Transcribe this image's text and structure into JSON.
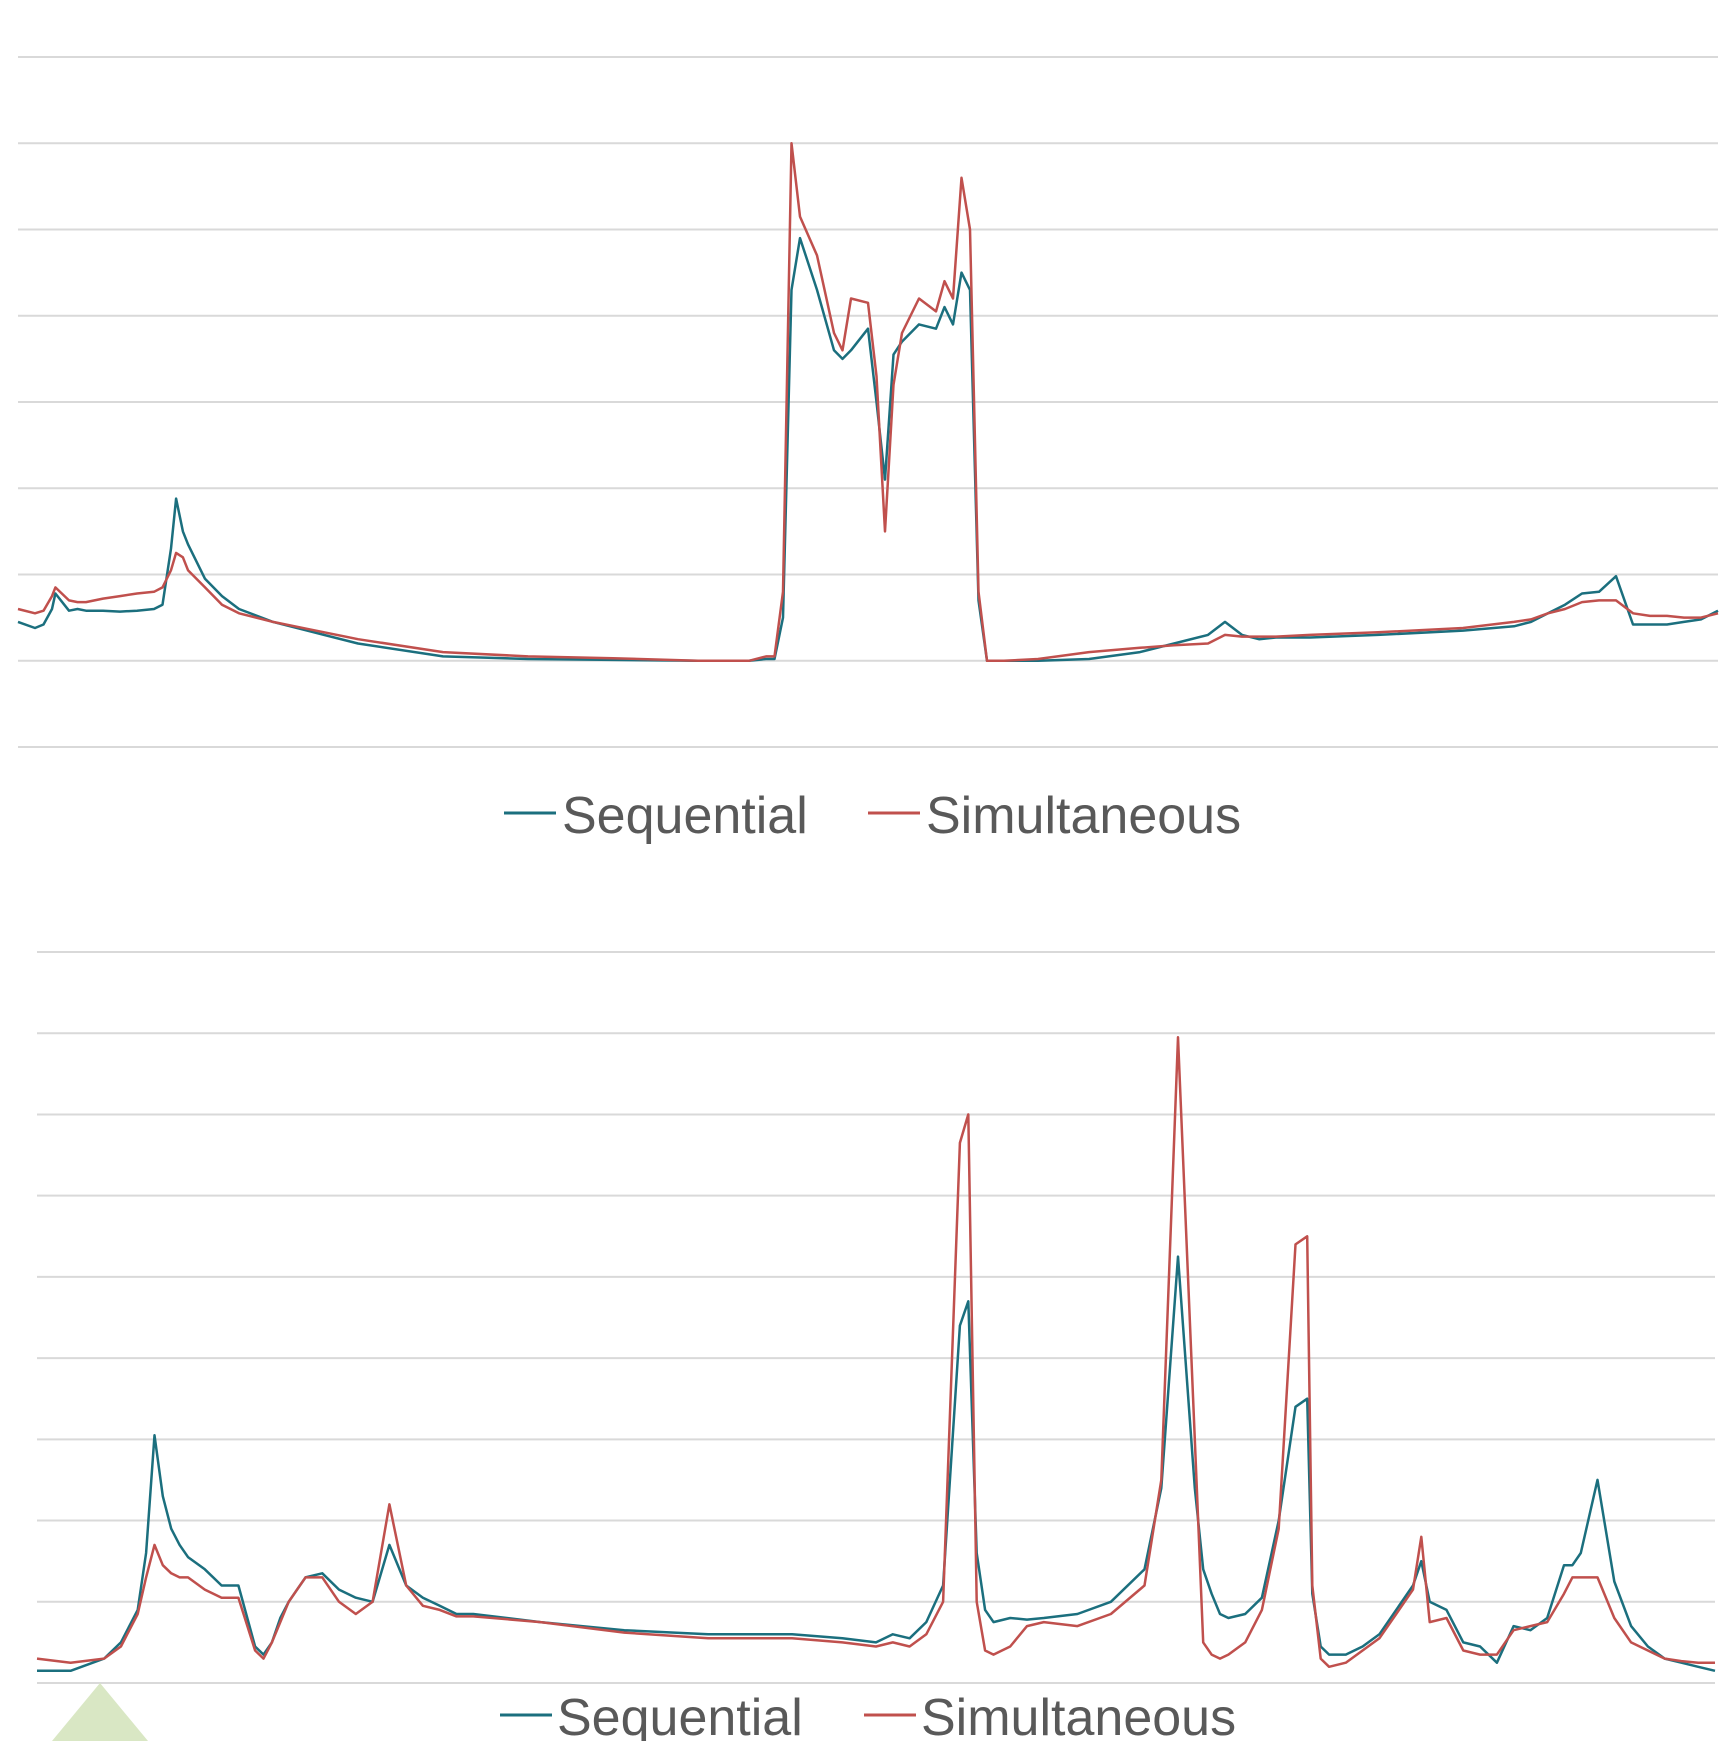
{
  "colors": {
    "sequential": "#1b6f7e",
    "simultaneous": "#c0504d",
    "grid": "#d9d9d9",
    "legend_text": "#595959",
    "decoration": "#d9e7c4"
  },
  "legend": {
    "sequential": "Sequential",
    "simultaneous": "Simultaneous"
  },
  "chart_data": [
    {
      "type": "line",
      "title": "",
      "xlabel": "",
      "ylabel": "",
      "grid": true,
      "gridlines": 9,
      "ylim": [
        -1,
        7
      ],
      "xlim": [
        0,
        100
      ],
      "legend_position": "bottom",
      "series": [
        {
          "name": "Sequential",
          "x": [
            0,
            1,
            1.5,
            2,
            2.2,
            3,
            3.5,
            4,
            5,
            6,
            7,
            8,
            8.5,
            9,
            9.3,
            9.7,
            10,
            11,
            12,
            13,
            15,
            17,
            20,
            25,
            30,
            35,
            40,
            43,
            44,
            44.5,
            45,
            45.5,
            46,
            47,
            48,
            48.5,
            49,
            50,
            50.5,
            51,
            51.5,
            52,
            53,
            54,
            54.5,
            55,
            55.5,
            56,
            56.5,
            57,
            58,
            60,
            63,
            66,
            68,
            70,
            71,
            72,
            73,
            74,
            76,
            80,
            85,
            88,
            89,
            90,
            91,
            92,
            93,
            94,
            95,
            96,
            97,
            98,
            99,
            100
          ],
          "y": [
            0.45,
            0.38,
            0.42,
            0.6,
            0.78,
            0.58,
            0.6,
            0.58,
            0.58,
            0.57,
            0.58,
            0.6,
            0.65,
            1.3,
            1.88,
            1.5,
            1.35,
            0.95,
            0.75,
            0.6,
            0.45,
            0.35,
            0.2,
            0.05,
            0.02,
            0.01,
            0.0,
            0.0,
            0.02,
            0.02,
            0.5,
            4.3,
            4.9,
            4.3,
            3.6,
            3.5,
            3.6,
            3.85,
            3.0,
            2.1,
            3.55,
            3.7,
            3.9,
            3.85,
            4.1,
            3.9,
            4.5,
            4.3,
            0.7,
            0.0,
            0.0,
            0.0,
            0.02,
            0.1,
            0.2,
            0.3,
            0.45,
            0.3,
            0.25,
            0.27,
            0.27,
            0.3,
            0.35,
            0.4,
            0.45,
            0.55,
            0.65,
            0.78,
            0.8,
            0.98,
            0.42,
            0.42,
            0.42,
            0.45,
            0.48,
            0.58
          ]
        },
        {
          "name": "Simultaneous",
          "x": [
            0,
            1,
            1.5,
            2,
            2.2,
            3,
            3.5,
            4,
            5,
            6,
            7,
            8,
            8.5,
            9,
            9.3,
            9.7,
            10,
            11,
            12,
            13,
            15,
            17,
            20,
            25,
            30,
            35,
            40,
            43,
            44,
            44.5,
            45,
            45.5,
            46,
            47,
            48,
            48.5,
            49,
            50,
            50.5,
            51,
            51.5,
            52,
            53,
            54,
            54.5,
            55,
            55.5,
            56,
            56.5,
            57,
            58,
            60,
            63,
            66,
            68,
            70,
            71,
            72,
            73,
            74,
            76,
            80,
            85,
            88,
            89,
            90,
            91,
            92,
            93,
            94,
            95,
            96,
            97,
            98,
            99,
            100
          ],
          "y": [
            0.6,
            0.55,
            0.58,
            0.75,
            0.85,
            0.7,
            0.68,
            0.68,
            0.72,
            0.75,
            0.78,
            0.8,
            0.85,
            1.05,
            1.25,
            1.2,
            1.05,
            0.85,
            0.65,
            0.55,
            0.45,
            0.37,
            0.25,
            0.1,
            0.05,
            0.03,
            0.0,
            0.0,
            0.05,
            0.05,
            0.8,
            6.0,
            5.15,
            4.7,
            3.8,
            3.6,
            4.2,
            4.15,
            3.3,
            1.5,
            3.2,
            3.8,
            4.2,
            4.05,
            4.4,
            4.2,
            5.6,
            5.0,
            0.8,
            0.0,
            0.0,
            0.02,
            0.1,
            0.15,
            0.18,
            0.2,
            0.3,
            0.28,
            0.28,
            0.28,
            0.3,
            0.33,
            0.38,
            0.45,
            0.48,
            0.55,
            0.6,
            0.68,
            0.7,
            0.7,
            0.55,
            0.52,
            0.52,
            0.5,
            0.5,
            0.55
          ]
        }
      ]
    },
    {
      "type": "line",
      "title": "",
      "xlabel": "",
      "ylabel": "",
      "grid": true,
      "gridlines": 10,
      "ylim": [
        0,
        9
      ],
      "xlim": [
        0,
        100
      ],
      "legend_position": "bottom",
      "series": [
        {
          "name": "Sequential",
          "x": [
            0,
            2,
            4,
            5,
            6,
            6.5,
            7,
            7.5,
            8,
            8.5,
            9,
            10,
            11,
            12,
            13,
            13.5,
            14,
            14.5,
            15,
            15.5,
            16,
            17,
            18,
            19,
            20,
            21,
            22,
            23,
            24,
            25,
            26,
            30,
            35,
            40,
            45,
            48,
            50,
            51,
            52,
            53,
            54,
            55,
            55.5,
            56,
            56.5,
            57,
            58,
            59,
            60,
            62,
            64,
            66,
            67,
            68,
            69,
            69.5,
            70,
            70.5,
            71,
            72,
            73,
            74,
            75,
            75.7,
            76,
            76.5,
            77,
            78,
            79,
            80,
            81,
            82,
            82.5,
            83,
            84,
            85,
            86,
            87,
            88,
            89,
            90,
            91,
            91.5,
            92,
            93,
            94,
            95,
            96,
            97,
            98,
            99,
            100
          ],
          "y": [
            0.15,
            0.15,
            0.3,
            0.5,
            0.9,
            1.6,
            3.05,
            2.3,
            1.9,
            1.7,
            1.55,
            1.4,
            1.2,
            1.2,
            0.45,
            0.35,
            0.5,
            0.8,
            1.0,
            1.15,
            1.3,
            1.35,
            1.15,
            1.05,
            1.0,
            1.7,
            1.2,
            1.05,
            0.95,
            0.85,
            0.85,
            0.75,
            0.65,
            0.6,
            0.6,
            0.55,
            0.5,
            0.6,
            0.55,
            0.75,
            1.2,
            4.4,
            4.7,
            1.6,
            0.9,
            0.75,
            0.8,
            0.78,
            0.8,
            0.85,
            1.0,
            1.4,
            2.4,
            5.25,
            2.4,
            1.4,
            1.1,
            0.85,
            0.8,
            0.85,
            1.05,
            2.0,
            3.4,
            3.5,
            1.1,
            0.45,
            0.35,
            0.35,
            0.45,
            0.6,
            0.9,
            1.2,
            1.5,
            1.0,
            0.9,
            0.5,
            0.45,
            0.25,
            0.7,
            0.65,
            0.8,
            1.45,
            1.45,
            1.6,
            2.5,
            1.25,
            0.7,
            0.45,
            0.3,
            0.25,
            0.2,
            0.15
          ]
        },
        {
          "name": "Simultaneous",
          "x": [
            0,
            2,
            4,
            5,
            6,
            6.5,
            7,
            7.5,
            8,
            8.5,
            9,
            10,
            11,
            12,
            13,
            13.5,
            14,
            14.5,
            15,
            15.5,
            16,
            17,
            18,
            19,
            20,
            21,
            22,
            23,
            24,
            25,
            26,
            30,
            35,
            40,
            45,
            48,
            50,
            51,
            52,
            53,
            54,
            55,
            55.5,
            56,
            56.5,
            57,
            58,
            59,
            60,
            62,
            64,
            66,
            67,
            68,
            69,
            69.5,
            70,
            70.5,
            71,
            72,
            73,
            74,
            75,
            75.7,
            76,
            76.5,
            77,
            78,
            79,
            80,
            81,
            82,
            82.5,
            83,
            84,
            85,
            86,
            87,
            88,
            89,
            90,
            91,
            91.5,
            92,
            93,
            94,
            95,
            96,
            97,
            98,
            99,
            100
          ],
          "y": [
            0.3,
            0.25,
            0.3,
            0.45,
            0.85,
            1.3,
            1.7,
            1.45,
            1.35,
            1.3,
            1.3,
            1.15,
            1.05,
            1.05,
            0.4,
            0.3,
            0.5,
            0.75,
            1.0,
            1.15,
            1.3,
            1.3,
            1.0,
            0.85,
            1.0,
            2.2,
            1.2,
            0.95,
            0.9,
            0.82,
            0.82,
            0.75,
            0.62,
            0.55,
            0.55,
            0.5,
            0.45,
            0.5,
            0.45,
            0.6,
            1.0,
            6.65,
            7.0,
            1.0,
            0.4,
            0.35,
            0.45,
            0.7,
            0.75,
            0.7,
            0.85,
            1.2,
            2.5,
            7.95,
            3.0,
            0.5,
            0.35,
            0.3,
            0.35,
            0.5,
            0.9,
            1.9,
            5.4,
            5.5,
            1.2,
            0.3,
            0.2,
            0.25,
            0.4,
            0.55,
            0.85,
            1.15,
            1.8,
            0.75,
            0.8,
            0.4,
            0.35,
            0.35,
            0.65,
            0.7,
            0.75,
            1.1,
            1.3,
            1.3,
            1.3,
            0.8,
            0.5,
            0.4,
            0.3,
            0.27,
            0.25,
            0.25
          ]
        }
      ]
    }
  ]
}
